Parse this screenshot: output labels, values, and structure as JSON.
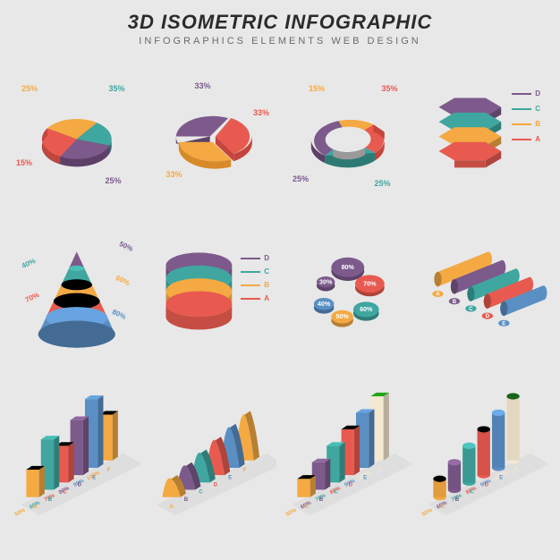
{
  "header": {
    "title": "3D ISOMETRIC INFOGRAPHIC",
    "subtitle": "INFOGRAPHICS ELEMENTS WEB DESIGN"
  },
  "palette": {
    "teal": "#3fa6a0",
    "teal_dark": "#2d7a75",
    "orange": "#f4a942",
    "orange_dark": "#d88a28",
    "red": "#e85a4f",
    "red_dark": "#c4453b",
    "purple": "#7d5a8c",
    "purple_dark": "#5d4068",
    "blue": "#5a8fc4",
    "blue_dark": "#3f6a99",
    "cream": "#f5e8d0",
    "cream_dark": "#d9cab0"
  },
  "pie1": {
    "type": "pie",
    "slices": [
      {
        "label": "25%",
        "color": "#f4a942",
        "label_color": "#f4a942"
      },
      {
        "label": "35%",
        "color": "#3fa6a0",
        "label_color": "#3fa6a0"
      },
      {
        "label": "25%",
        "color": "#7d5a8c",
        "label_color": "#7d5a8c"
      },
      {
        "label": "15%",
        "color": "#e85a4f",
        "label_color": "#e85a4f"
      }
    ]
  },
  "pie2": {
    "type": "pie",
    "slices": [
      {
        "label": "33%",
        "color": "#7d5a8c",
        "label_color": "#7d5a8c"
      },
      {
        "label": "33%",
        "color": "#e85a4f",
        "label_color": "#e85a4f"
      },
      {
        "label": "33%",
        "color": "#f4a942",
        "label_color": "#f4a942"
      }
    ]
  },
  "donut1": {
    "type": "donut",
    "slices": [
      {
        "label": "15%",
        "color": "#f4a942",
        "label_color": "#f4a942"
      },
      {
        "label": "35%",
        "color": "#e85a4f",
        "label_color": "#e85a4f"
      },
      {
        "label": "25%",
        "color": "#3fa6a0",
        "label_color": "#3fa6a0"
      },
      {
        "label": "25%",
        "color": "#7d5a8c",
        "label_color": "#7d5a8c"
      }
    ]
  },
  "hexstack": {
    "type": "stacked-hex",
    "layers": [
      {
        "letter": "D",
        "color": "#7d5a8c"
      },
      {
        "letter": "C",
        "color": "#3fa6a0"
      },
      {
        "letter": "B",
        "color": "#f4a942"
      },
      {
        "letter": "A",
        "color": "#e85a4f"
      }
    ]
  },
  "cone": {
    "type": "cone",
    "bands": [
      {
        "label": "50%",
        "color": "#7d5a8c"
      },
      {
        "label": "40%",
        "color": "#3fa6a0"
      },
      {
        "label": "60%",
        "color": "#f4a942"
      },
      {
        "label": "70%",
        "color": "#e85a4f"
      },
      {
        "label": "80%",
        "color": "#5a8fc4"
      }
    ]
  },
  "cylstack": {
    "type": "stacked-cylinder",
    "layers": [
      {
        "letter": "D",
        "color": "#7d5a8c"
      },
      {
        "letter": "C",
        "color": "#3fa6a0"
      },
      {
        "letter": "B",
        "color": "#f4a942"
      },
      {
        "letter": "A",
        "color": "#e85a4f"
      }
    ]
  },
  "bubblepie": {
    "type": "bubble-pie",
    "items": [
      {
        "label": "80%",
        "color": "#7d5a8c"
      },
      {
        "label": "70%",
        "color": "#e85a4f"
      },
      {
        "label": "60%",
        "color": "#3fa6a0"
      },
      {
        "label": "50%",
        "color": "#f4a942"
      },
      {
        "label": "40%",
        "color": "#5a8fc4"
      },
      {
        "label": "30%",
        "color": "#7d5a8c"
      }
    ]
  },
  "tubes": {
    "type": "horizontal-cylinders",
    "items": [
      {
        "letter": "A",
        "color": "#f4a942"
      },
      {
        "letter": "B",
        "color": "#7d5a8c"
      },
      {
        "letter": "C",
        "color": "#3fa6a0"
      },
      {
        "letter": "D",
        "color": "#e85a4f"
      },
      {
        "letter": "E",
        "color": "#5a8fc4"
      }
    ]
  },
  "bars3d_1": {
    "type": "3d-bars",
    "items": [
      {
        "letter": "A",
        "pct": "50%",
        "color": "#f4a942",
        "h": 30
      },
      {
        "letter": "B",
        "pct": "60%",
        "color": "#3fa6a0",
        "h": 55
      },
      {
        "letter": "C",
        "pct": "70%",
        "color": "#e85a4f",
        "h": 40
      },
      {
        "letter": "D",
        "pct": "80%",
        "color": "#7d5a8c",
        "h": 60
      },
      {
        "letter": "E",
        "pct": "90%",
        "color": "#5a8fc4",
        "h": 75
      },
      {
        "letter": "F",
        "pct": "100%",
        "color": "#f4a942",
        "h": 50
      }
    ]
  },
  "waves": {
    "type": "3d-waves",
    "items": [
      {
        "letter": "A",
        "color": "#f4a942"
      },
      {
        "letter": "B",
        "color": "#7d5a8c"
      },
      {
        "letter": "C",
        "color": "#3fa6a0"
      },
      {
        "letter": "D",
        "color": "#e85a4f"
      },
      {
        "letter": "E",
        "color": "#5a8fc4"
      },
      {
        "letter": "F",
        "color": "#f4a942"
      }
    ]
  },
  "steps": {
    "type": "3d-steps",
    "items": [
      {
        "letter": "A",
        "pct": "50%",
        "color": "#f4a942",
        "h": 20
      },
      {
        "letter": "B",
        "pct": "60%",
        "color": "#7d5a8c",
        "h": 30
      },
      {
        "letter": "C",
        "pct": "70%",
        "color": "#3fa6a0",
        "h": 40
      },
      {
        "letter": "D",
        "pct": "80%",
        "color": "#e85a4f",
        "h": 50
      },
      {
        "letter": "E",
        "pct": "90%",
        "color": "#5a8fc4",
        "h": 60
      },
      {
        "letter": "F",
        "pct": "100%",
        "color": "#f5e8d0",
        "h": 70
      }
    ]
  },
  "cylbars": {
    "type": "3d-cylinder-bars",
    "items": [
      {
        "letter": "A",
        "pct": "50%",
        "color": "#f4a942",
        "h": 20
      },
      {
        "letter": "B",
        "pct": "60%",
        "color": "#7d5a8c",
        "h": 30
      },
      {
        "letter": "C",
        "pct": "70%",
        "color": "#3fa6a0",
        "h": 40
      },
      {
        "letter": "D",
        "pct": "80%",
        "color": "#e85a4f",
        "h": 50
      },
      {
        "letter": "E",
        "pct": "90%",
        "color": "#5a8fc4",
        "h": 60
      },
      {
        "letter": "F",
        "pct": "100%",
        "color": "#f5e8d0",
        "h": 70
      }
    ]
  }
}
